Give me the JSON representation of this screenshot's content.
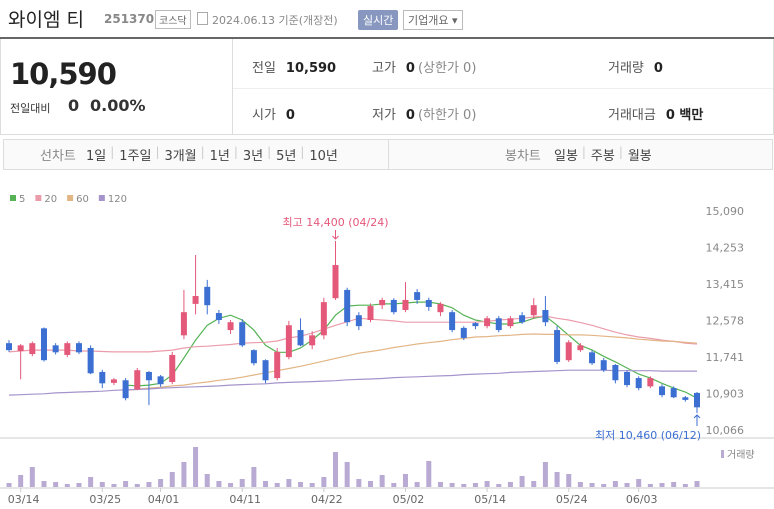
{
  "header": {
    "name": "와이엠 티",
    "code": "251370",
    "market": "코스닥",
    "date": "2024.06.13 기준(개장전)",
    "status": "실시간",
    "company_info": "기업개요 ▾"
  },
  "quote": {
    "price": "10,590",
    "change_label": "전일대비",
    "change": "0",
    "change_rate": "0.00%"
  },
  "stats": [
    {
      "label": "전일",
      "value": "10,590"
    },
    {
      "label": "고가",
      "value": "0",
      "note": "(상한가 0)"
    },
    {
      "label": "거래량",
      "value": "0"
    },
    {
      "label": "시가",
      "value": "0"
    },
    {
      "label": "저가",
      "value": "0",
      "note": "(하한가 0)"
    },
    {
      "label": "거래대금",
      "value": "0 백만"
    }
  ],
  "tabs": {
    "line_label": "선차트",
    "line": [
      "1일",
      "1주일",
      "3개월",
      "1년",
      "3년",
      "5년",
      "10년"
    ],
    "candle_label": "봉차트",
    "candle": [
      "일봉",
      "주봉",
      "월봉"
    ]
  },
  "chart_data": {
    "type": "candlestick",
    "categories": [
      null,
      "03/14",
      null,
      null,
      null,
      null,
      null,
      null,
      "03/25",
      null,
      null,
      null,
      null,
      "04/01",
      null,
      null,
      null,
      null,
      null,
      null,
      "04/11",
      null,
      null,
      null,
      null,
      null,
      null,
      "04/22",
      null,
      null,
      null,
      null,
      null,
      null,
      "05/02",
      null,
      null,
      null,
      null,
      null,
      null,
      "05/14",
      null,
      null,
      null,
      null,
      null,
      null,
      "05/24",
      null,
      null,
      null,
      null,
      null,
      "06/03",
      null,
      null,
      null,
      null,
      null
    ],
    "open": [
      12060,
      11880,
      11810,
      12400,
      12010,
      11790,
      12060,
      11950,
      11400,
      11150,
      11210,
      11000,
      11400,
      11300,
      11170,
      12240,
      12960,
      13350,
      12750,
      12360,
      12540,
      11900,
      11670,
      11260,
      11740,
      12360,
      12010,
      12240,
      13090,
      13280,
      12700,
      12590,
      12930,
      13050,
      12820,
      13230,
      13050,
      12770,
      12770,
      12410,
      12520,
      12450,
      12630,
      12450,
      12700,
      12700,
      12820,
      12360,
      11670,
      11900,
      11850,
      11670,
      11560,
      11400,
      11260,
      11070,
      11070,
      11030,
      10820,
      10920
    ],
    "high": [
      12130,
      12040,
      12100,
      12420,
      12060,
      12100,
      12100,
      12010,
      11450,
      11260,
      11260,
      11490,
      11420,
      11330,
      11860,
      13280,
      14080,
      13510,
      12820,
      12590,
      12610,
      11920,
      11690,
      11950,
      12570,
      12630,
      12330,
      13100,
      14400,
      13330,
      12770,
      12970,
      13100,
      13090,
      13460,
      13300,
      13100,
      13000,
      12820,
      12450,
      12540,
      12680,
      12680,
      12680,
      12770,
      13090,
      13140,
      12450,
      12130,
      12060,
      11900,
      11720,
      11580,
      11440,
      11300,
      11300,
      11120,
      11070,
      10850,
      10940
    ],
    "low": [
      11860,
      11230,
      11760,
      11640,
      11800,
      11740,
      11810,
      11350,
      11030,
      11100,
      10750,
      10980,
      10640,
      11060,
      11120,
      12150,
      12720,
      12720,
      12500,
      12270,
      11970,
      11550,
      11140,
      11210,
      11690,
      11990,
      11920,
      12150,
      13050,
      12450,
      12360,
      12540,
      12840,
      12720,
      12770,
      12960,
      12800,
      12680,
      12310,
      12130,
      12380,
      12400,
      12310,
      12400,
      12500,
      12630,
      12450,
      11580,
      11630,
      11860,
      11560,
      11400,
      11140,
      11050,
      10980,
      11030,
      10820,
      10800,
      10720,
      10460
    ],
    "close": [
      11900,
      12010,
      12060,
      11670,
      11850,
      12060,
      11850,
      11370,
      11140,
      11230,
      10800,
      11440,
      11210,
      11120,
      11790,
      12770,
      13140,
      12930,
      12590,
      12540,
      12010,
      11600,
      11210,
      11860,
      12470,
      12010,
      12240,
      13000,
      13850,
      12540,
      12450,
      12910,
      13050,
      12770,
      13050,
      13050,
      12890,
      12960,
      12360,
      12180,
      12450,
      12630,
      12360,
      12630,
      12540,
      12930,
      12540,
      11630,
      12080,
      12010,
      11600,
      11440,
      11210,
      11100,
      11030,
      11260,
      10870,
      10820,
      10760,
      10590
    ],
    "up_color": "#e4587a",
    "down_color": "#3c6fd2",
    "ylim": [
      9910,
      15340
    ],
    "yticks": [
      {
        "value": 15090,
        "label": "15,090"
      },
      {
        "value": 14253,
        "label": "14,253"
      },
      {
        "value": 13415,
        "label": "13,415"
      },
      {
        "value": 12578,
        "label": "12,578"
      },
      {
        "value": 11741,
        "label": "11,741"
      },
      {
        "value": 10903,
        "label": "10,903"
      },
      {
        "value": 10066,
        "label": "10,066"
      }
    ],
    "moving_averages": [
      {
        "name": "5",
        "color": "#55b355",
        "values": [
          null,
          null,
          null,
          null,
          null,
          null,
          null,
          null,
          null,
          null,
          11100,
          11080,
          11100,
          11140,
          11330,
          11720,
          12130,
          12470,
          12630,
          12700,
          12590,
          12360,
          12010,
          11850,
          11850,
          11950,
          12130,
          12360,
          12700,
          12910,
          12930,
          12930,
          12960,
          12960,
          12980,
          13000,
          13000,
          12960,
          12870,
          12700,
          12590,
          12540,
          12500,
          12500,
          12540,
          12630,
          12680,
          12470,
          12240,
          12010,
          11900,
          11760,
          11630,
          11490,
          11350,
          11260,
          11140,
          11030,
          10940,
          10800
        ]
      },
      {
        "name": "20",
        "color": "#eb9cab",
        "values": [
          11860,
          11880,
          11900,
          11900,
          11900,
          11900,
          11880,
          11880,
          11870,
          11860,
          11860,
          11860,
          11860,
          11880,
          11900,
          11950,
          11980,
          11990,
          12010,
          12030,
          12060,
          12070,
          12080,
          12110,
          12180,
          12220,
          12290,
          12380,
          12470,
          12550,
          12630,
          12610,
          12590,
          12570,
          12540,
          12540,
          12540,
          12540,
          12540,
          12540,
          12540,
          12560,
          12590,
          12610,
          12630,
          12660,
          12680,
          12630,
          12590,
          12530,
          12470,
          12390,
          12310,
          12250,
          12200,
          12170,
          12130,
          12100,
          12060,
          12040
        ]
      },
      {
        "name": "60",
        "color": "#e2b585",
        "values": [
          null,
          null,
          null,
          null,
          null,
          null,
          null,
          null,
          null,
          null,
          10980,
          11000,
          11030,
          11050,
          11080,
          11100,
          11140,
          11170,
          11210,
          11240,
          11280,
          11330,
          11380,
          11430,
          11480,
          11530,
          11590,
          11650,
          11710,
          11770,
          11830,
          11870,
          11910,
          11960,
          12000,
          12040,
          12070,
          12100,
          12140,
          12170,
          12200,
          12210,
          12230,
          12240,
          12260,
          12270,
          12260,
          12260,
          12250,
          12250,
          12240,
          12220,
          12200,
          12180,
          12150,
          12130,
          12110,
          12100,
          12080,
          12060
        ]
      },
      {
        "name": "120",
        "color": "#a594cc",
        "values": [
          10870,
          10880,
          10890,
          10900,
          10920,
          10930,
          10940,
          10950,
          10960,
          10980,
          10990,
          11000,
          11010,
          11030,
          11040,
          11050,
          11060,
          11070,
          11080,
          11100,
          11110,
          11120,
          11130,
          11150,
          11160,
          11170,
          11180,
          11190,
          11200,
          11220,
          11230,
          11240,
          11250,
          11270,
          11280,
          11290,
          11300,
          11310,
          11320,
          11340,
          11350,
          11360,
          11370,
          11390,
          11400,
          11410,
          11420,
          11430,
          11440,
          11440,
          11440,
          11440,
          11430,
          11430,
          11430,
          11430,
          11420,
          11420,
          11420,
          11420
        ]
      }
    ],
    "volume": {
      "label": "거래량",
      "color": "#b8aad2",
      "ylim": [
        0,
        44
      ],
      "values": [
        4,
        12,
        20,
        6,
        5,
        3,
        4,
        10,
        5,
        3,
        6,
        3,
        5,
        8,
        15,
        25,
        40,
        13,
        6,
        4,
        8,
        20,
        6,
        4,
        8,
        5,
        4,
        10,
        35,
        25,
        8,
        6,
        12,
        4,
        13,
        5,
        26,
        5,
        4,
        3,
        4,
        6,
        3,
        5,
        11,
        6,
        25,
        15,
        13,
        5,
        4,
        3,
        6,
        4,
        8,
        3,
        4,
        5,
        3,
        6
      ]
    },
    "annotations": {
      "high": "최고 14,400 (04/24)",
      "low": "최저 10,460 (06/12)"
    }
  }
}
